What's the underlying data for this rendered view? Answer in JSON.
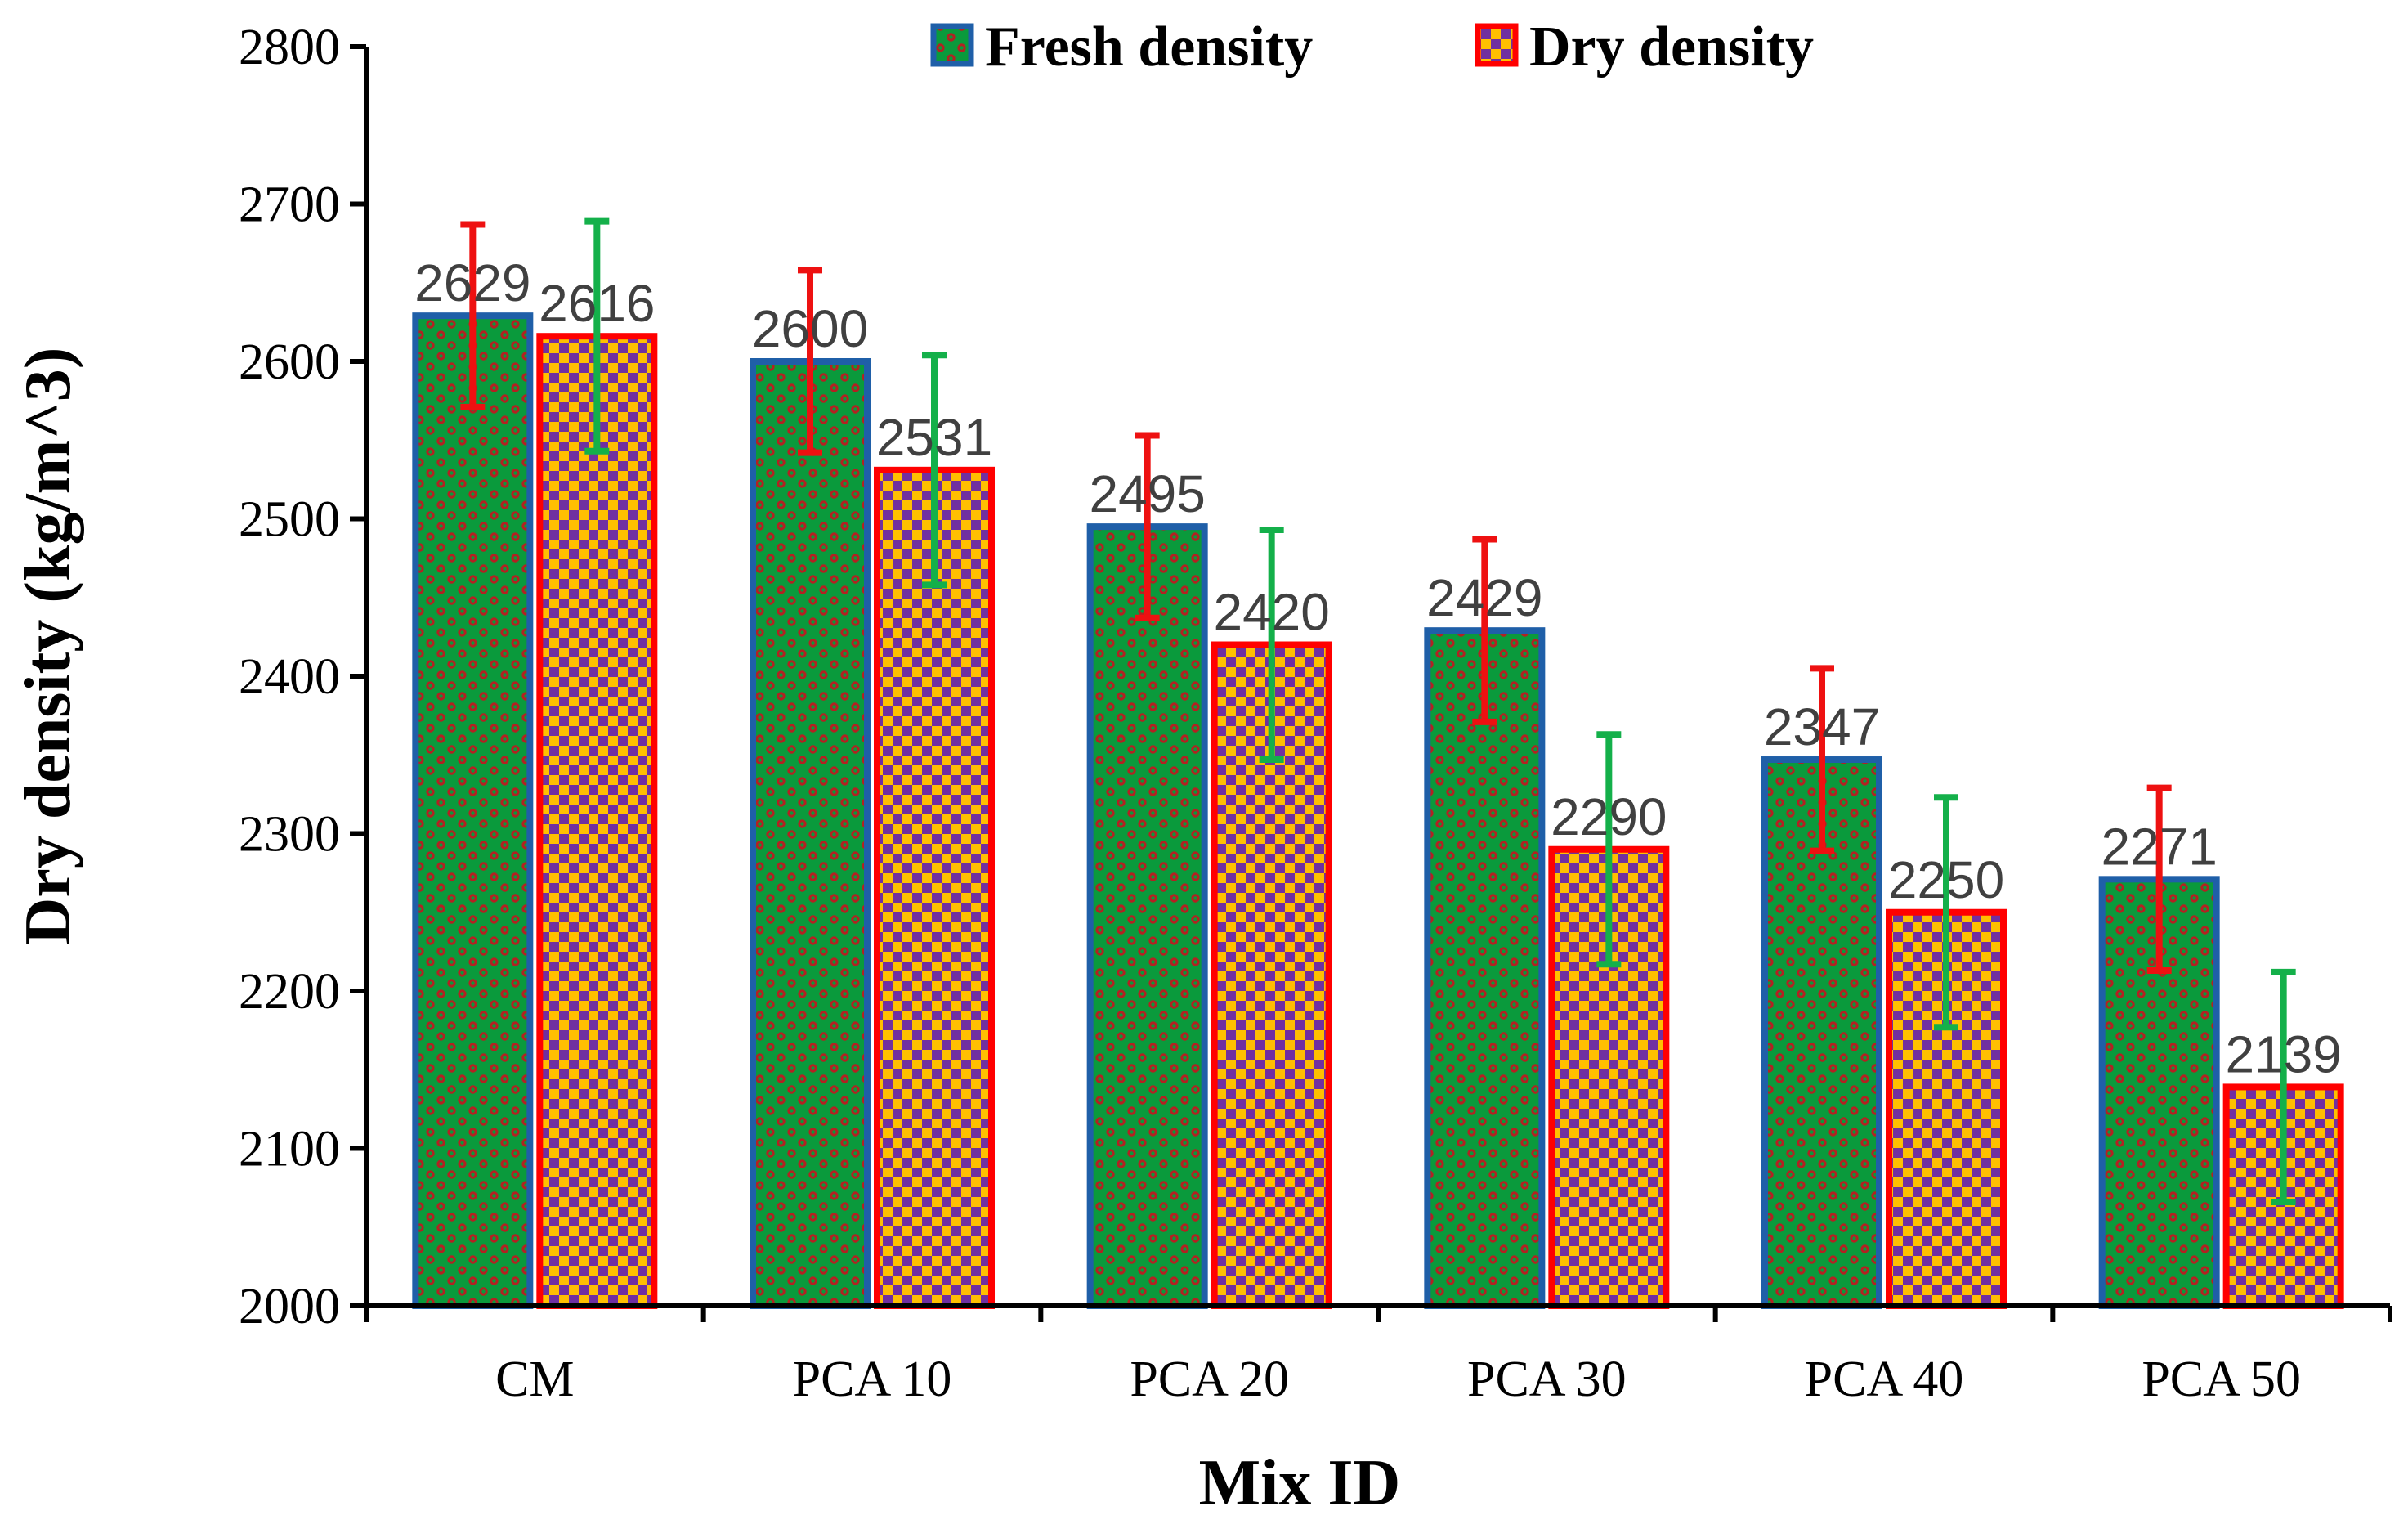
{
  "chart_data": {
    "type": "bar",
    "categories": [
      "CM",
      "PCA 10",
      "PCA 20",
      "PCA 30",
      "PCA 40",
      "PCA 50"
    ],
    "series": [
      {
        "name": "Fresh density",
        "values": [
          2629,
          2600,
          2495,
          2429,
          2347,
          2271
        ],
        "error_plus": [
          58,
          58,
          58,
          58,
          58,
          58
        ],
        "error_minus": [
          58,
          58,
          58,
          58,
          58,
          58
        ],
        "fill_color": "#0a9a3c",
        "pattern_color": "#b22222",
        "border_color": "#1f5fa8",
        "error_color": "#ee1111"
      },
      {
        "name": "Dry density",
        "values": [
          2616,
          2531,
          2420,
          2290,
          2250,
          2139
        ],
        "error_plus": [
          73,
          73,
          73,
          73,
          73,
          73
        ],
        "error_minus": [
          73,
          73,
          73,
          73,
          73,
          73
        ],
        "fill_color": "#ffc000",
        "pattern_color": "#7030a0",
        "border_color": "#ff0000",
        "error_color": "#14b04a"
      }
    ],
    "xlabel": "Mix ID",
    "ylabel": "Dry density (kg/m^3)",
    "ylim": [
      2000,
      2800
    ],
    "yticks": [
      2000,
      2100,
      2200,
      2300,
      2400,
      2500,
      2600,
      2700,
      2800
    ],
    "legend_position": "top",
    "grid": false,
    "data_labels": true
  }
}
